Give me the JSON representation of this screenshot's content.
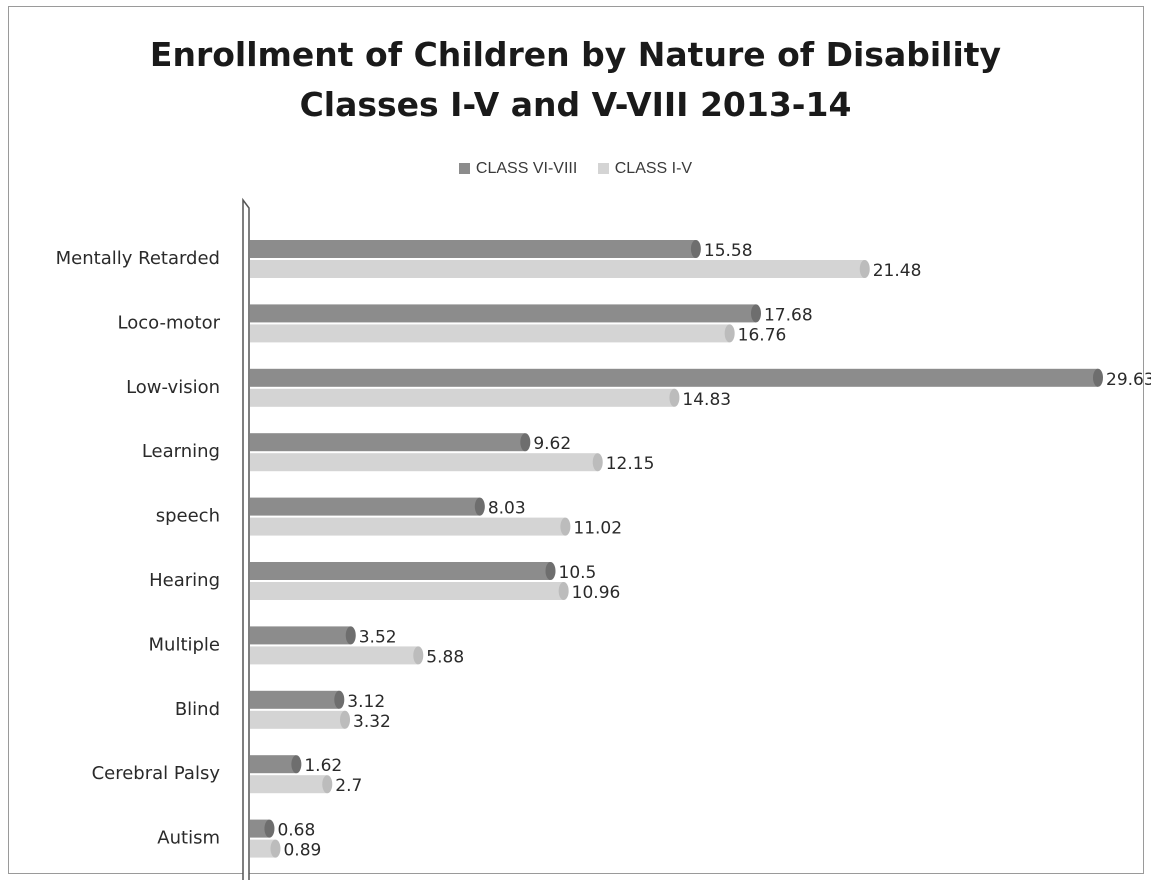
{
  "chart_data": {
    "type": "bar",
    "orientation": "horizontal",
    "title_line1": "Enrollment of Children by Nature of Disability",
    "title_line2": "Classes I-V and V-VIII 2013-14",
    "xlabel": "",
    "ylabel": "",
    "xlim": [
      0,
      29.63
    ],
    "grid": false,
    "legend_position": "top",
    "categories": [
      "Mentally Retarded",
      "Loco-motor",
      "Low-vision",
      "Learning",
      "speech",
      "Hearing",
      "Multiple",
      "Blind",
      "Cerebral Palsy",
      "Autism"
    ],
    "series": [
      {
        "name": "CLASS VI-VIII",
        "color": "#8c8c8c",
        "values": [
          15.58,
          17.68,
          29.63,
          9.62,
          8.03,
          10.5,
          3.52,
          3.12,
          1.62,
          0.68
        ]
      },
      {
        "name": "CLASS I-V",
        "color": "#d4d4d4",
        "values": [
          21.48,
          16.76,
          14.83,
          12.15,
          11.02,
          10.96,
          5.88,
          3.32,
          2.7,
          0.89
        ]
      }
    ]
  }
}
